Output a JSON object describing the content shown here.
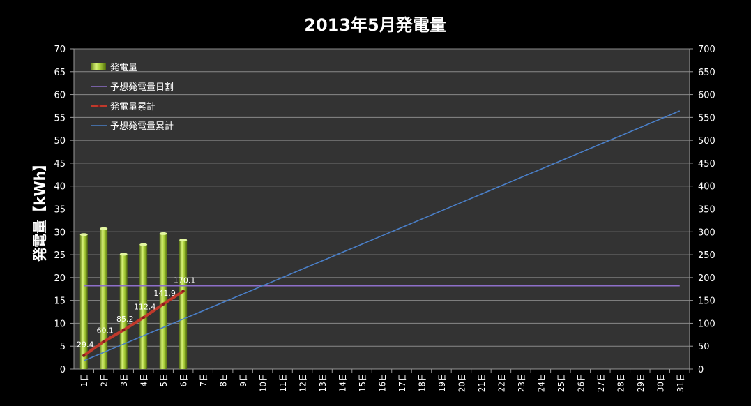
{
  "chart_data": {
    "type": "bar",
    "title": "2013年5月発電量",
    "ylabel": "発電量【kWh】",
    "xlabel": "",
    "ylim": [
      0,
      70
    ],
    "y_ticks": [
      0,
      5,
      10,
      15,
      20,
      25,
      30,
      35,
      40,
      45,
      50,
      55,
      60,
      65,
      70
    ],
    "y2lim": [
      0,
      700
    ],
    "y2_ticks": [
      0,
      50,
      100,
      150,
      200,
      250,
      300,
      350,
      400,
      450,
      500,
      550,
      600,
      650,
      700
    ],
    "categories": [
      "1日",
      "2日",
      "3日",
      "4日",
      "5日",
      "6日",
      "7日",
      "8日",
      "9日",
      "10日",
      "11日",
      "12日",
      "13日",
      "14日",
      "15日",
      "16日",
      "17日",
      "18日",
      "19日",
      "20日",
      "21日",
      "22日",
      "23日",
      "24日",
      "25日",
      "26日",
      "27日",
      "28日",
      "29日",
      "30日",
      "31日"
    ],
    "grid": true,
    "legend_position": "top-left",
    "series": [
      {
        "name": "発電量",
        "type": "bar",
        "axis": "left",
        "color": "#9acd32",
        "values": [
          29.4,
          30.7,
          25.1,
          27.2,
          29.6,
          28.2,
          null,
          null,
          null,
          null,
          null,
          null,
          null,
          null,
          null,
          null,
          null,
          null,
          null,
          null,
          null,
          null,
          null,
          null,
          null,
          null,
          null,
          null,
          null,
          null,
          null
        ]
      },
      {
        "name": "予想発電量日割",
        "type": "line",
        "axis": "left",
        "color": "#8e6fc9",
        "values": [
          18.2,
          18.2,
          18.2,
          18.2,
          18.2,
          18.2,
          18.2,
          18.2,
          18.2,
          18.2,
          18.2,
          18.2,
          18.2,
          18.2,
          18.2,
          18.2,
          18.2,
          18.2,
          18.2,
          18.2,
          18.2,
          18.2,
          18.2,
          18.2,
          18.2,
          18.2,
          18.2,
          18.2,
          18.2,
          18.2,
          18.2
        ]
      },
      {
        "name": "発電量累計",
        "type": "line",
        "axis": "right",
        "color": "#c0392b",
        "values": [
          29.4,
          60.1,
          85.2,
          112.4,
          141.9,
          170.1,
          null,
          null,
          null,
          null,
          null,
          null,
          null,
          null,
          null,
          null,
          null,
          null,
          null,
          null,
          null,
          null,
          null,
          null,
          null,
          null,
          null,
          null,
          null,
          null,
          null
        ],
        "data_labels": [
          "29.4",
          "60.1",
          "85.2",
          "112.4",
          "141.9",
          "170.1"
        ]
      },
      {
        "name": "予想発電量累計",
        "type": "line",
        "axis": "right",
        "color": "#4a7fc8",
        "values": [
          18.2,
          36.4,
          54.6,
          72.8,
          91.0,
          109.2,
          127.4,
          145.6,
          163.8,
          182.0,
          200.2,
          218.4,
          236.6,
          254.8,
          273.0,
          291.2,
          309.4,
          327.6,
          345.8,
          364.0,
          382.2,
          400.4,
          418.6,
          436.8,
          455.0,
          473.2,
          491.4,
          509.6,
          527.8,
          546.0,
          564.2
        ]
      }
    ]
  }
}
